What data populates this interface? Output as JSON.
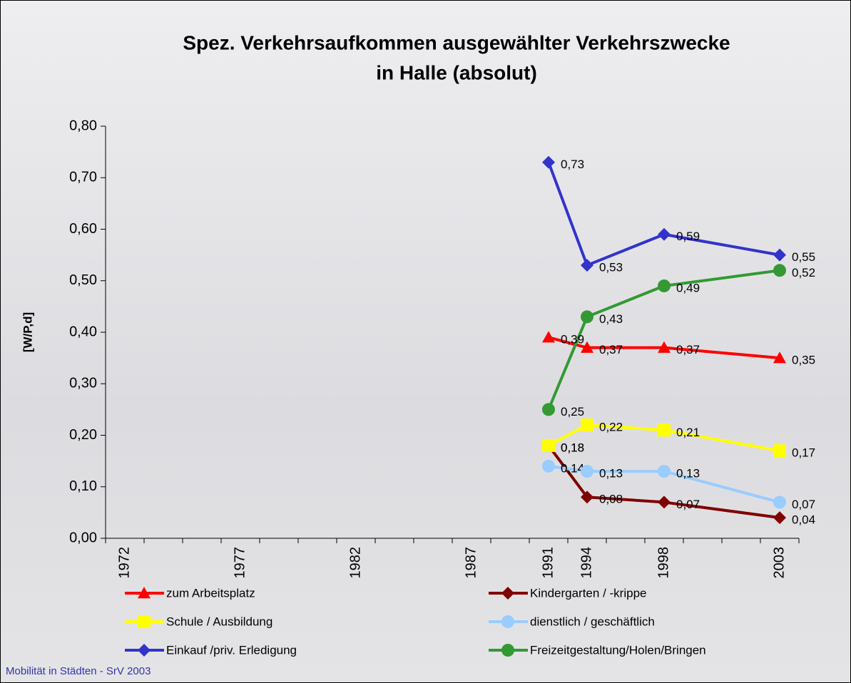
{
  "chart_data": {
    "type": "line",
    "title": [
      "Spez. Verkehrsaufkommen ausgewählter Verkehrszwecke",
      "in Halle (absolut)"
    ],
    "y_label": "[W/P,d]",
    "footer": "Mobilität in Städten - SrV 2003",
    "categories": [
      "1972",
      null,
      null,
      "1977",
      null,
      null,
      "1982",
      null,
      null,
      "1987",
      null,
      "1991",
      "1994",
      null,
      "1998",
      null,
      null,
      "2003"
    ],
    "ylim": [
      0,
      0.8
    ],
    "yticks": [
      {
        "value": 0,
        "label": "0,00"
      },
      {
        "value": 0.1,
        "label": "0,10"
      },
      {
        "value": 0.2,
        "label": "0,20"
      },
      {
        "value": 0.3,
        "label": "0,30"
      },
      {
        "value": 0.4,
        "label": "0,40"
      },
      {
        "value": 0.5,
        "label": "0,50"
      },
      {
        "value": 0.6,
        "label": "0,60"
      },
      {
        "value": 0.7,
        "label": "0,70"
      },
      {
        "value": 0.8,
        "label": "0,80"
      }
    ],
    "series": [
      {
        "name": "zum Arbeitsplatz",
        "color": "#ff0000",
        "marker": "triangle",
        "values": [
          null,
          null,
          null,
          null,
          null,
          null,
          null,
          null,
          null,
          null,
          null,
          0.39,
          0.37,
          null,
          0.37,
          null,
          null,
          0.35
        ],
        "value_labels": [
          null,
          null,
          null,
          null,
          null,
          null,
          null,
          null,
          null,
          null,
          null,
          "0,39",
          "0,37",
          null,
          "0,37",
          null,
          null,
          "0,35"
        ]
      },
      {
        "name": "Kindergarten / -krippe",
        "color": "#800000",
        "marker": "diamond",
        "values": [
          null,
          null,
          null,
          null,
          null,
          null,
          null,
          null,
          null,
          null,
          null,
          0.18,
          0.08,
          null,
          0.07,
          null,
          null,
          0.04
        ],
        "value_labels": [
          null,
          null,
          null,
          null,
          null,
          null,
          null,
          null,
          null,
          null,
          null,
          "0,18",
          "0,08",
          null,
          "0,07",
          null,
          null,
          "0,04"
        ]
      },
      {
        "name": "Schule / Ausbildung",
        "color": "#ffff00",
        "marker": "square",
        "values": [
          null,
          null,
          null,
          null,
          null,
          null,
          null,
          null,
          null,
          null,
          null,
          0.18,
          0.22,
          null,
          0.21,
          null,
          null,
          0.17
        ],
        "value_labels": [
          null,
          null,
          null,
          null,
          null,
          null,
          null,
          null,
          null,
          null,
          null,
          "0,18",
          "0,22",
          null,
          "0,21",
          null,
          null,
          "0,17"
        ]
      },
      {
        "name": "dienstlich / geschäftlich",
        "color": "#99ccff",
        "marker": "circle",
        "values": [
          null,
          null,
          null,
          null,
          null,
          null,
          null,
          null,
          null,
          null,
          null,
          0.14,
          0.13,
          null,
          0.13,
          null,
          null,
          0.07
        ],
        "value_labels": [
          null,
          null,
          null,
          null,
          null,
          null,
          null,
          null,
          null,
          null,
          null,
          "0,14",
          "0,13",
          null,
          "0,13",
          null,
          null,
          "0,07"
        ]
      },
      {
        "name": "Einkauf /priv. Erledigung",
        "color": "#3333cc",
        "marker": "diamond",
        "values": [
          null,
          null,
          null,
          null,
          null,
          null,
          null,
          null,
          null,
          null,
          null,
          0.73,
          0.53,
          null,
          0.59,
          null,
          null,
          0.55
        ],
        "value_labels": [
          null,
          null,
          null,
          null,
          null,
          null,
          null,
          null,
          null,
          null,
          null,
          "0,73",
          "0,53",
          null,
          "0,59",
          null,
          null,
          "0,55"
        ]
      },
      {
        "name": "Freizeitgestaltung/Holen/Bringen",
        "color": "#339933",
        "marker": "circle",
        "values": [
          null,
          null,
          null,
          null,
          null,
          null,
          null,
          null,
          null,
          null,
          null,
          0.25,
          0.43,
          null,
          0.49,
          null,
          null,
          0.52
        ],
        "value_labels": [
          null,
          null,
          null,
          null,
          null,
          null,
          null,
          null,
          null,
          null,
          null,
          "0,25",
          "0,43",
          null,
          "0,49",
          null,
          null,
          "0,52"
        ]
      }
    ]
  }
}
